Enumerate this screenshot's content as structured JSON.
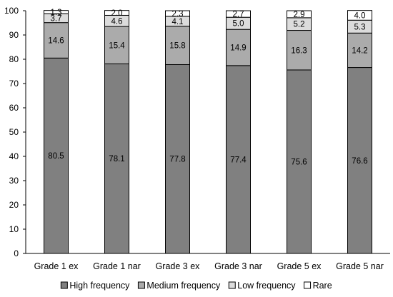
{
  "chart_data": {
    "type": "bar",
    "stacked": true,
    "categories": [
      "Grade 1 ex",
      "Grade 1 nar",
      "Grade 3 ex",
      "Grade 3 nar",
      "Grade 5 ex",
      "Grade 5 nar"
    ],
    "series": [
      {
        "name": "High frequency",
        "color": "#808080",
        "values": [
          80.5,
          78.1,
          77.8,
          77.4,
          75.6,
          76.6
        ]
      },
      {
        "name": "Medium frequency",
        "color": "#ababab",
        "values": [
          14.6,
          15.4,
          15.8,
          14.9,
          16.3,
          14.2
        ]
      },
      {
        "name": "Low frequency",
        "color": "#dcdcdc",
        "values": [
          3.7,
          4.6,
          4.1,
          5.0,
          5.2,
          5.3
        ]
      },
      {
        "name": "Rare",
        "color": "#ffffff",
        "values": [
          1.3,
          2.0,
          2.3,
          2.7,
          2.9,
          4.0
        ]
      }
    ],
    "value_labels": [
      [
        "80.5",
        "78.1",
        "77.8",
        "77.4",
        "75.6",
        "76.6"
      ],
      [
        "14.6",
        "15.4",
        "15.8",
        "14.9",
        "16.3",
        "14.2"
      ],
      [
        "3.7",
        "4.6",
        "4.1",
        "5.0",
        "5.2",
        "5.3"
      ],
      [
        "1.3",
        "2.0",
        "2.3",
        "2.7",
        "2.9",
        "4.0"
      ]
    ],
    "ylim": [
      0,
      100
    ],
    "yticks": [
      0,
      10,
      20,
      30,
      40,
      50,
      60,
      70,
      80,
      90,
      100
    ],
    "grid": false,
    "legend_position": "bottom"
  }
}
